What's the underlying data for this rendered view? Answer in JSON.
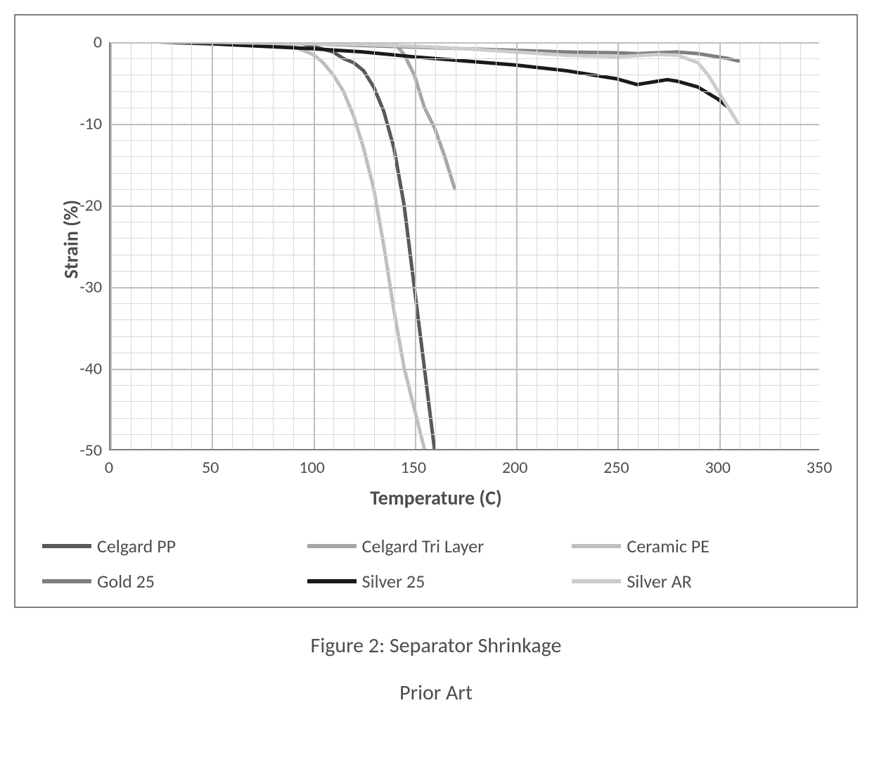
{
  "chart": {
    "type": "line",
    "xlabel": "Temperature (C)",
    "ylabel": "Strain (%)",
    "xlim": [
      0,
      350
    ],
    "ylim": [
      -50,
      0
    ],
    "xtick_step": 50,
    "ytick_step": 10,
    "minor_xtick_step": 10,
    "minor_ytick_step": 2,
    "axis_fontsize": 24,
    "label_fontsize": 28,
    "background_color": "#ffffff",
    "minor_grid_color": "#d9d9d9",
    "major_grid_color": "#bfbfbf",
    "axis_color": "#7f7f7f",
    "line_width": 5,
    "series": [
      {
        "name": "Celgard PP",
        "color": "#595959",
        "x": [
          25,
          50,
          75,
          95,
          100,
          110,
          115,
          120,
          125,
          130,
          135,
          140,
          145,
          150,
          155,
          158,
          160
        ],
        "y": [
          0,
          0,
          0,
          -0.2,
          -0.5,
          -1.2,
          -2.0,
          -2.5,
          -3.5,
          -5.5,
          -8.5,
          -13,
          -20,
          -30,
          -40,
          -46,
          -50
        ]
      },
      {
        "name": "Celgard Tri Layer",
        "color": "#a6a6a6",
        "x": [
          25,
          50,
          75,
          95,
          100,
          110,
          120,
          125,
          130,
          135,
          140,
          145,
          150,
          155,
          160,
          165,
          170
        ],
        "y": [
          0,
          0.2,
          0.3,
          0.5,
          0.5,
          0.6,
          0.8,
          0.7,
          0.5,
          0.3,
          0,
          -1.5,
          -4,
          -8,
          -10.5,
          -14,
          -18
        ]
      },
      {
        "name": "Ceramic PE",
        "color": "#bfbfbf",
        "x": [
          25,
          50,
          75,
          90,
          100,
          105,
          110,
          115,
          120,
          125,
          130,
          135,
          140,
          145,
          150,
          153,
          155
        ],
        "y": [
          0,
          0,
          -0.2,
          -0.5,
          -1.5,
          -2.5,
          -4,
          -6,
          -9,
          -13,
          -18,
          -25,
          -33,
          -40,
          -45,
          -48,
          -50
        ]
      },
      {
        "name": "Gold 25",
        "color": "#7f7f7f",
        "x": [
          25,
          50,
          75,
          100,
          125,
          150,
          175,
          200,
          225,
          250,
          260,
          270,
          280,
          290,
          300,
          305,
          310
        ],
        "y": [
          0,
          0,
          -0.1,
          -0.2,
          -0.4,
          -0.6,
          -0.8,
          -1.0,
          -1.2,
          -1.3,
          -1.4,
          -1.3,
          -1.2,
          -1.4,
          -1.8,
          -2.0,
          -2.3
        ]
      },
      {
        "name": "Silver 25",
        "color": "#1a1a1a",
        "x": [
          25,
          50,
          75,
          100,
          125,
          150,
          175,
          200,
          225,
          250,
          260,
          265,
          270,
          275,
          280,
          290,
          300,
          305
        ],
        "y": [
          0,
          -0.2,
          -0.5,
          -0.8,
          -1.2,
          -1.8,
          -2.3,
          -2.8,
          -3.5,
          -4.5,
          -5.2,
          -5.0,
          -4.8,
          -4.6,
          -4.8,
          -5.5,
          -7.0,
          -8.0
        ]
      },
      {
        "name": "Silver AR",
        "color": "#cccccc",
        "x": [
          25,
          50,
          75,
          100,
          125,
          150,
          175,
          200,
          225,
          250,
          270,
          280,
          290,
          295,
          300,
          305,
          310
        ],
        "y": [
          0,
          0,
          -0.1,
          -0.2,
          -0.3,
          -0.5,
          -0.8,
          -1.2,
          -1.6,
          -1.8,
          -1.5,
          -1.6,
          -2.5,
          -4,
          -6,
          -8,
          -10
        ]
      }
    ]
  },
  "legend": {
    "items": [
      {
        "label": "Celgard PP",
        "color": "#595959"
      },
      {
        "label": "Celgard Tri Layer",
        "color": "#a6a6a6"
      },
      {
        "label": "Ceramic PE",
        "color": "#bfbfbf"
      },
      {
        "label": "Gold 25",
        "color": "#7f7f7f"
      },
      {
        "label": "Silver 25",
        "color": "#1a1a1a"
      },
      {
        "label": "Silver AR",
        "color": "#cccccc"
      }
    ]
  },
  "caption": "Figure 2: Separator Shrinkage",
  "subcaption": "Prior Art"
}
